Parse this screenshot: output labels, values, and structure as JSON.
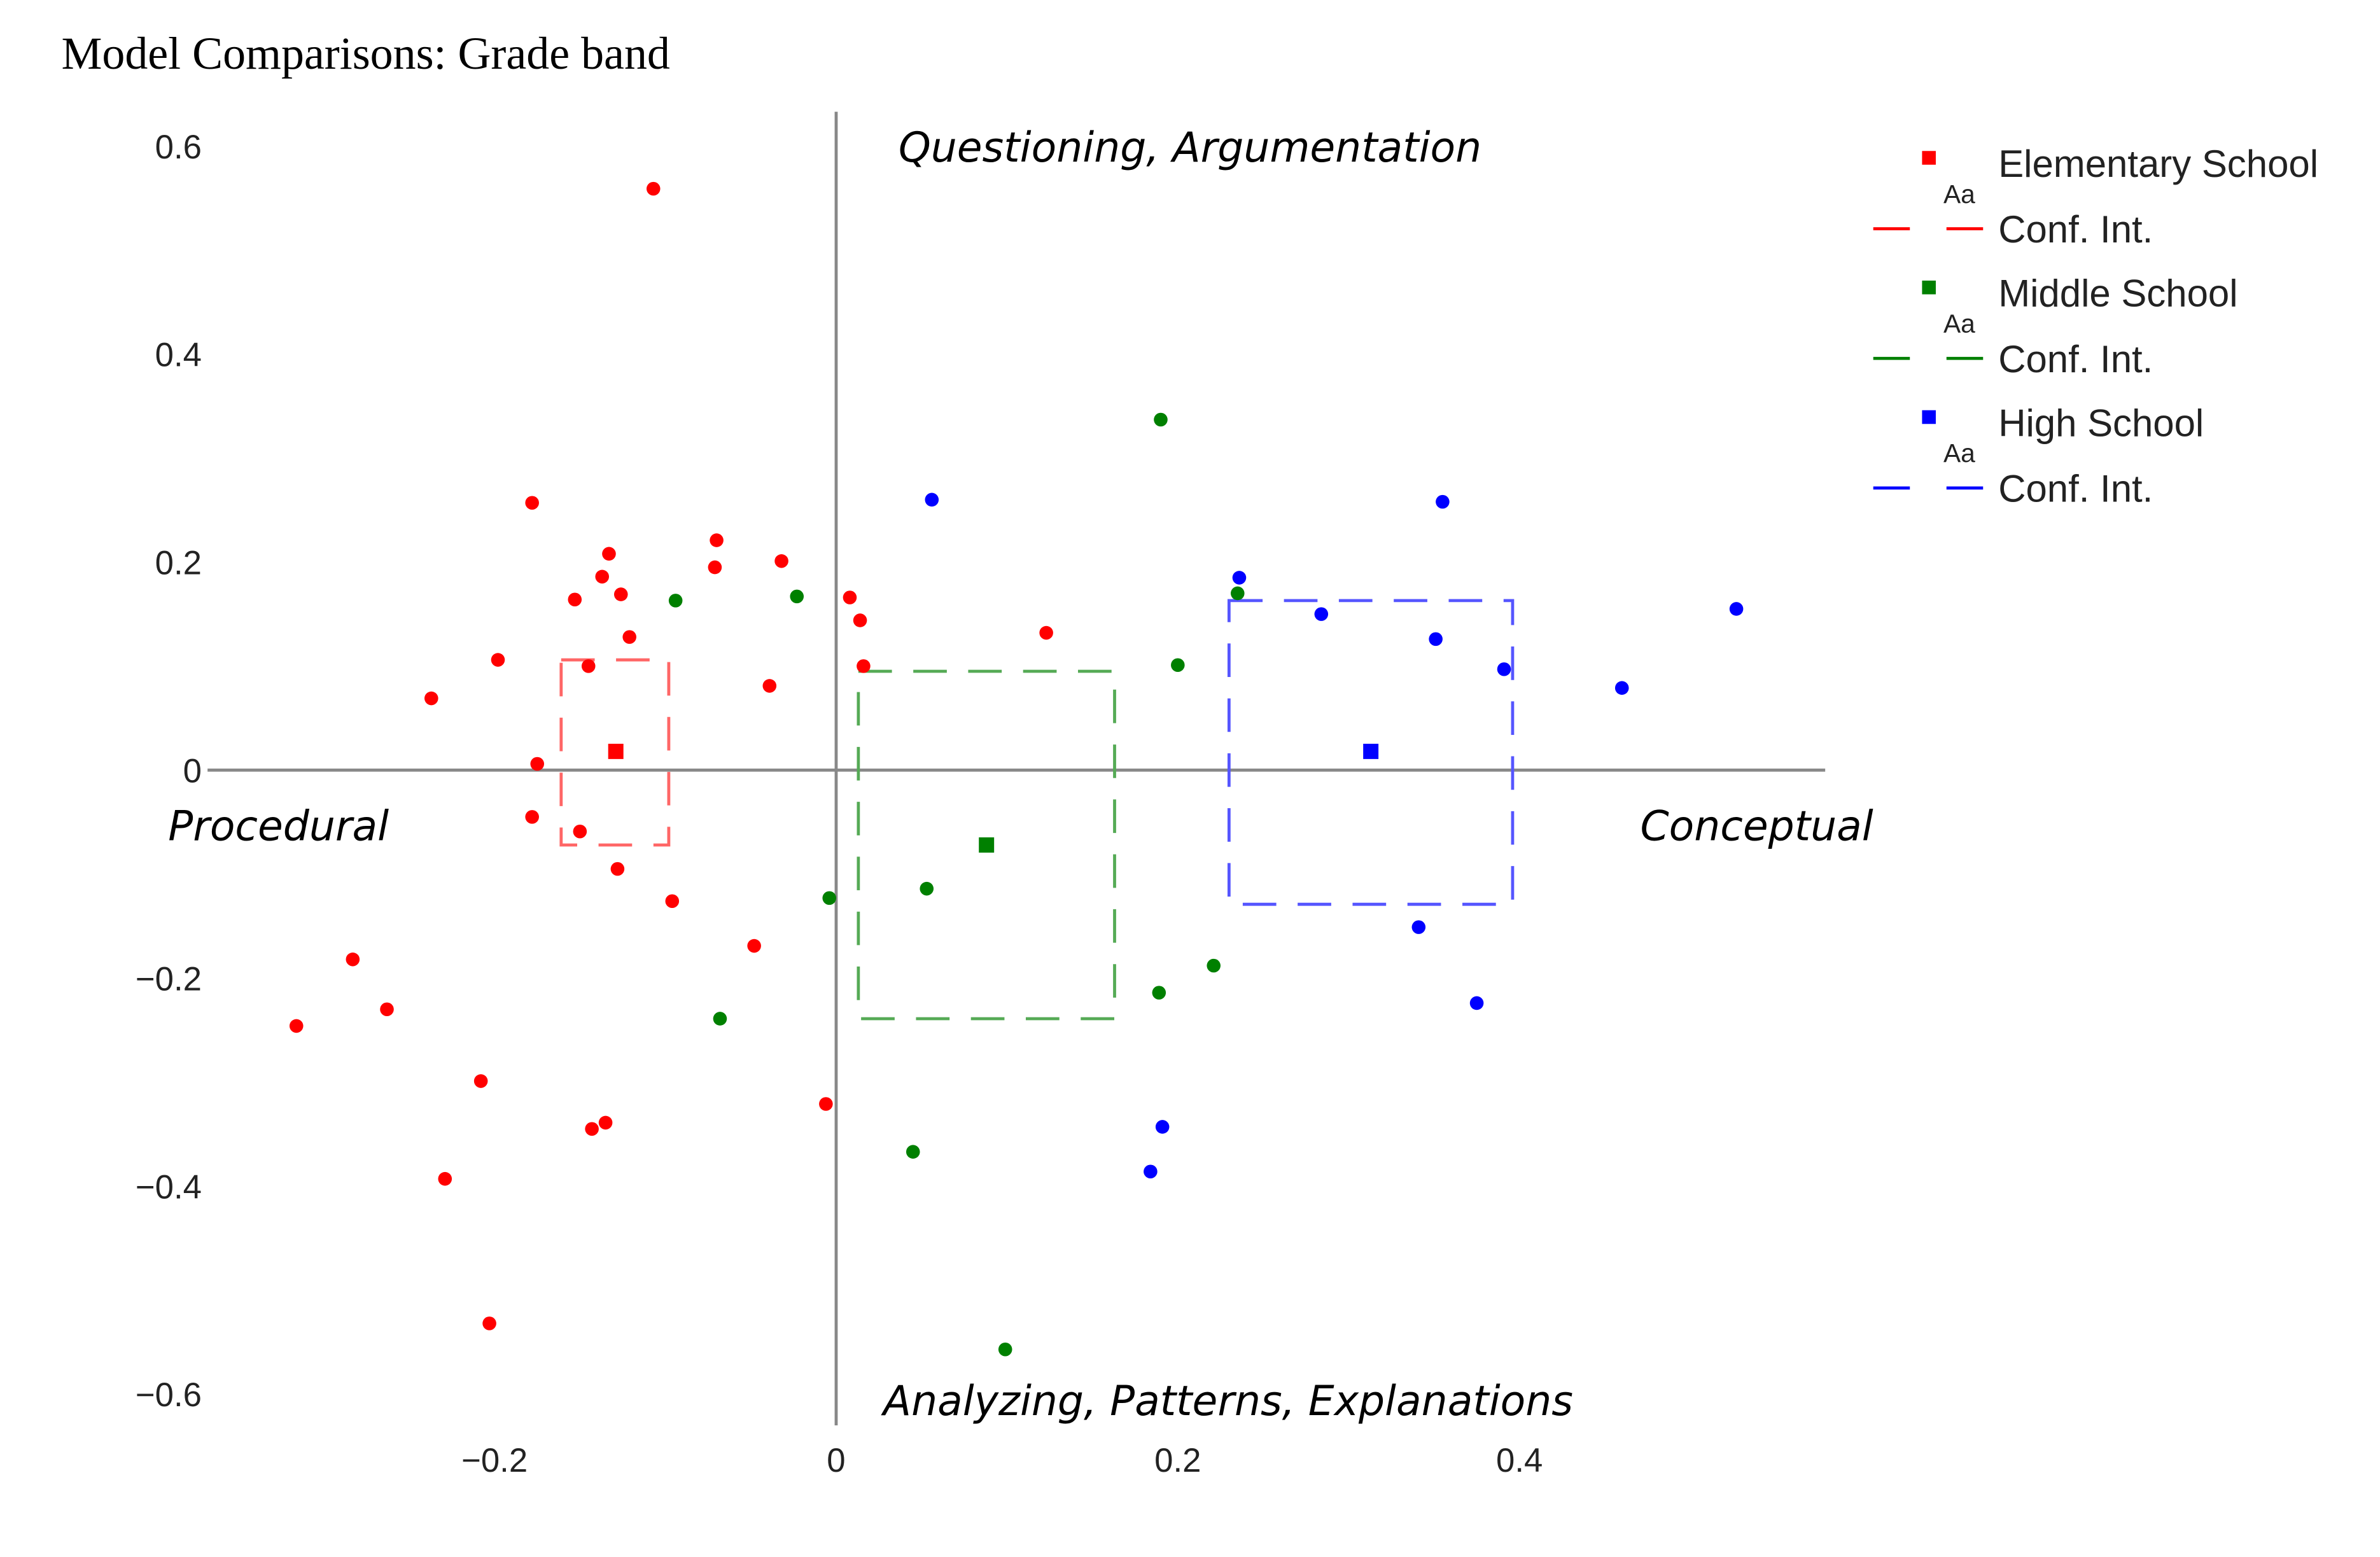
{
  "chart_data": {
    "type": "scatter",
    "title": "Model Comparisons: Grade band",
    "xlabel": "",
    "ylabel": "",
    "xlim": [
      -0.368,
      0.579
    ],
    "ylim": [
      -0.63,
      0.633
    ],
    "grid": false,
    "legend_position": "top-right",
    "x_ticks": [
      -0.2,
      0,
      0.2,
      0.4
    ],
    "x_tick_labels": [
      "−0.2",
      "0",
      "0.2",
      "0.4"
    ],
    "y_ticks": [
      0.6,
      0.4,
      0.2,
      0,
      -0.2,
      -0.4,
      -0.6
    ],
    "y_tick_labels": [
      "0.6",
      "0.4",
      "0.2",
      "0",
      "−0.2",
      "−0.4",
      "−0.6"
    ],
    "annotations": {
      "top": "Questioning, Argumentation",
      "bottom": "Analyzing, Patterns, Explanations",
      "left": "Procedural",
      "right": "Conceptual"
    },
    "legend_marker_text": "Aa",
    "series": [
      {
        "name": "Elementary School",
        "ci_label": "Conf. Int.",
        "color": "#ff0000",
        "ci_color": "#ff6666",
        "centroid": [
          -0.129,
          0.018
        ],
        "ci_x": [
          -0.161,
          -0.098
        ],
        "ci_y": [
          -0.072,
          0.106
        ],
        "points": [
          [
            -0.107,
            0.559
          ],
          [
            -0.178,
            0.257
          ],
          [
            -0.133,
            0.208
          ],
          [
            -0.07,
            0.221
          ],
          [
            -0.137,
            0.186
          ],
          [
            -0.071,
            0.195
          ],
          [
            -0.032,
            0.201
          ],
          [
            -0.153,
            0.164
          ],
          [
            -0.126,
            0.169
          ],
          [
            0.008,
            0.166
          ],
          [
            0.014,
            0.144
          ],
          [
            -0.121,
            0.128
          ],
          [
            0.123,
            0.132
          ],
          [
            -0.198,
            0.106
          ],
          [
            -0.145,
            0.1
          ],
          [
            0.016,
            0.1
          ],
          [
            -0.039,
            0.081
          ],
          [
            -0.237,
            0.069
          ],
          [
            -0.175,
            0.006
          ],
          [
            -0.178,
            -0.045
          ],
          [
            -0.15,
            -0.059
          ],
          [
            -0.128,
            -0.095
          ],
          [
            -0.096,
            -0.126
          ],
          [
            -0.048,
            -0.169
          ],
          [
            -0.283,
            -0.182
          ],
          [
            -0.263,
            -0.23
          ],
          [
            -0.316,
            -0.246
          ],
          [
            -0.208,
            -0.299
          ],
          [
            -0.006,
            -0.321
          ],
          [
            -0.135,
            -0.339
          ],
          [
            -0.143,
            -0.345
          ],
          [
            -0.229,
            -0.393
          ],
          [
            -0.203,
            -0.532
          ]
        ]
      },
      {
        "name": "Middle School",
        "ci_label": "Conf. Int.",
        "color": "#008000",
        "ci_color": "#55aa55",
        "centroid": [
          0.088,
          -0.072
        ],
        "ci_x": [
          0.013,
          0.163
        ],
        "ci_y": [
          -0.239,
          0.095
        ],
        "points": [
          [
            0.19,
            0.337
          ],
          [
            -0.094,
            0.163
          ],
          [
            -0.023,
            0.167
          ],
          [
            0.235,
            0.17
          ],
          [
            0.2,
            0.101
          ],
          [
            -0.004,
            -0.123
          ],
          [
            0.053,
            -0.114
          ],
          [
            -0.068,
            -0.239
          ],
          [
            0.221,
            -0.188
          ],
          [
            0.189,
            -0.214
          ],
          [
            0.045,
            -0.367
          ],
          [
            0.099,
            -0.557
          ]
        ]
      },
      {
        "name": "High School",
        "ci_label": "Conf. Int.",
        "color": "#0000ff",
        "ci_color": "#5555ff",
        "centroid": [
          0.313,
          0.018
        ],
        "ci_x": [
          0.23,
          0.396
        ],
        "ci_y": [
          -0.129,
          0.163
        ],
        "points": [
          [
            0.056,
            0.26
          ],
          [
            0.355,
            0.258
          ],
          [
            0.236,
            0.185
          ],
          [
            0.284,
            0.15
          ],
          [
            0.351,
            0.126
          ],
          [
            0.391,
            0.097
          ],
          [
            0.527,
            0.155
          ],
          [
            0.46,
            0.079
          ],
          [
            0.341,
            -0.151
          ],
          [
            0.375,
            -0.224
          ],
          [
            0.191,
            -0.343
          ],
          [
            0.184,
            -0.386
          ]
        ]
      }
    ]
  }
}
